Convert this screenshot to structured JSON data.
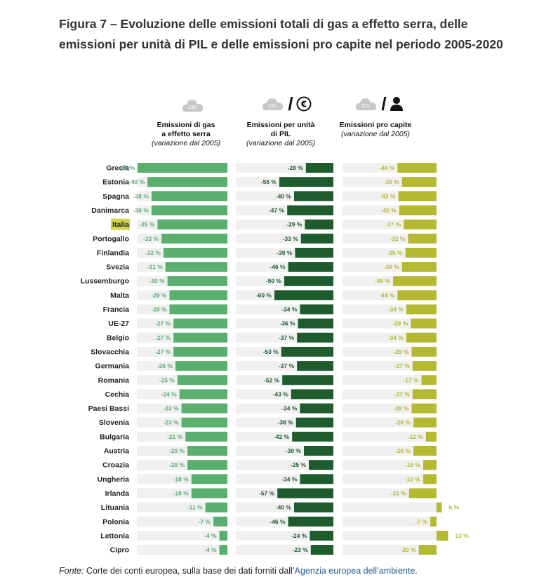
{
  "title": "Figura 7 – Evoluzione delle emissioni totali di gas a effetto serra, delle emissioni per unità di PIL e delle emissioni pro capite nel periodo 2005-2020",
  "columns": [
    {
      "heading_lines": [
        "Emissioni di gas",
        "a effetto serra"
      ],
      "subheading": "(variazione dal 2005)",
      "icon": "co2-cloud-icon",
      "color": "#5aae6e"
    },
    {
      "heading_lines": [
        "Emissioni per unità",
        "di PIL"
      ],
      "subheading": "(variazione dal 2005)",
      "icon": "co2-per-euro-icon",
      "color": "#1e5c2e"
    },
    {
      "heading_lines": [
        "Emissioni pro capite"
      ],
      "subheading": "(variazione dal 2005)",
      "icon": "co2-per-person-icon",
      "color": "#b5b932"
    }
  ],
  "icon_text": "CO₂",
  "footer": {
    "label": "Fonte:",
    "text": " Corte dei conti europea, sulla base dei dati forniti dall’",
    "link": "Agenzia europea dell’ambiente",
    "end": "."
  },
  "chart_data": {
    "type": "bar",
    "highlighted_category": "Italia",
    "highlight_color": "#cfd64a",
    "categories": [
      "Grecia",
      "Estonia",
      "Spagna",
      "Danimarca",
      "Italia",
      "Portogallo",
      "Finlandia",
      "Svezia",
      "Lussemburgo",
      "Malta",
      "Francia",
      "UE-27",
      "Belgio",
      "Slovacchia",
      "Germania",
      "Romania",
      "Cechia",
      "Paesi Bassi",
      "Slovenia",
      "Bulgaria",
      "Austria",
      "Croazia",
      "Ungheria",
      "Irlanda",
      "Lituania",
      "Polonia",
      "Lettonia",
      "Cipro"
    ],
    "series": [
      {
        "name": "Emissioni di gas a effetto serra",
        "unit": "%",
        "values": [
          -45,
          -40,
          -38,
          -38,
          -35,
          -33,
          -32,
          -31,
          -30,
          -29,
          -29,
          -27,
          -27,
          -27,
          -26,
          -25,
          -24,
          -23,
          -23,
          -21,
          -20,
          -20,
          -18,
          -18,
          -11,
          -7,
          -4,
          -4
        ]
      },
      {
        "name": "Emissioni per unità di PIL",
        "unit": "%",
        "values": [
          -28,
          -55,
          -40,
          -47,
          -29,
          -33,
          -39,
          -46,
          -50,
          -60,
          -34,
          -36,
          -37,
          -53,
          -37,
          -52,
          -43,
          -34,
          -38,
          -42,
          -30,
          -25,
          -34,
          -57,
          -40,
          -46,
          -24,
          -23
        ]
      },
      {
        "name": "Emissioni pro capite",
        "unit": "%",
        "values": [
          -44,
          -39,
          -43,
          -42,
          -37,
          -32,
          -35,
          -39,
          -49,
          -44,
          -34,
          -29,
          -34,
          -28,
          -27,
          -17,
          -27,
          -28,
          -26,
          -12,
          -26,
          -15,
          -15,
          -31,
          6,
          -7,
          13,
          -20
        ]
      }
    ]
  }
}
